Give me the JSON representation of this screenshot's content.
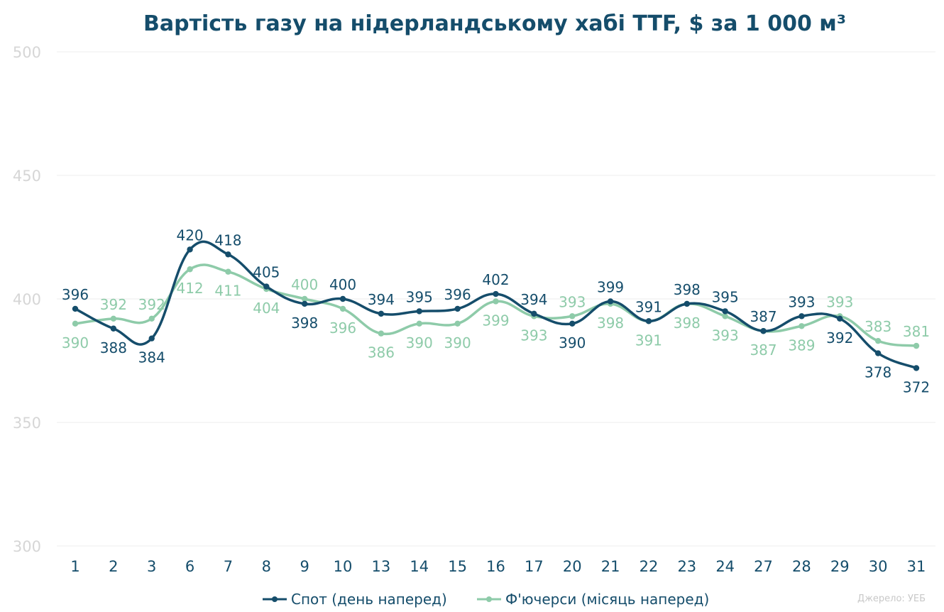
{
  "chart_data": {
    "type": "line",
    "title": "Вартість газу на нідерландському хабі TTF, $ за 1 000 м³",
    "categories": [
      "1",
      "2",
      "3",
      "6",
      "7",
      "8",
      "9",
      "10",
      "13",
      "14",
      "15",
      "16",
      "17",
      "20",
      "21",
      "22",
      "23",
      "24",
      "27",
      "28",
      "29",
      "30",
      "31"
    ],
    "ylim": [
      300,
      500
    ],
    "yticks": [
      "300",
      "350",
      "400",
      "450",
      "500"
    ],
    "grid": true,
    "legend_position": "bottom",
    "series": [
      {
        "name": "Спот (день наперед)",
        "color": "#154d6b",
        "values": [
          396,
          388,
          384,
          420,
          418,
          405,
          398,
          400,
          394,
          395,
          396,
          402,
          394,
          390,
          399,
          391,
          398,
          395,
          387,
          393,
          392,
          378,
          372
        ],
        "labels": [
          "396",
          "388",
          "384",
          "420",
          "418",
          "405",
          "398",
          "400",
          "394",
          "395",
          "396",
          "402",
          "394",
          "390",
          "399",
          "391",
          "398",
          "395",
          "387",
          "393",
          "392",
          "378",
          "372"
        ]
      },
      {
        "name": "Ф'ючерси (місяць наперед)",
        "color": "#8ecba9",
        "values": [
          390,
          392,
          392,
          412,
          411,
          404,
          400,
          396,
          386,
          390,
          390,
          399,
          393,
          393,
          398,
          391,
          398,
          393,
          387,
          389,
          393,
          383,
          381
        ],
        "labels": [
          "390",
          "392",
          "392",
          "412",
          "411",
          "404",
          "400",
          "396",
          "386",
          "390",
          "390",
          "399",
          "393",
          "393",
          "398",
          "391",
          "398",
          "393",
          "387",
          "389",
          "393",
          "383",
          "381"
        ]
      }
    ]
  },
  "colors": {
    "title": "#154d6b",
    "axis_text": "#d6d6d6",
    "x_text": "#154d6b",
    "grid": "#ededed",
    "source_text": "#c8c8c8"
  },
  "source": "Джерело: УЕБ"
}
